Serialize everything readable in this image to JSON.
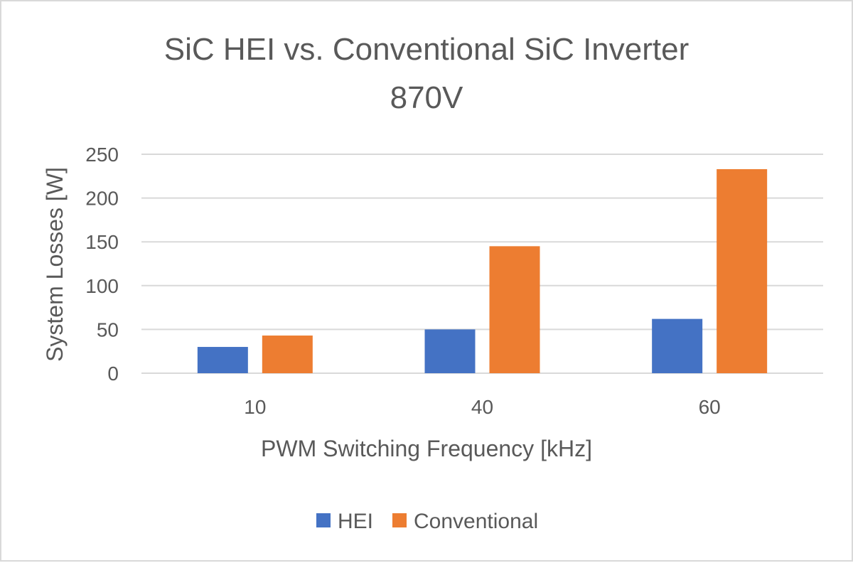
{
  "chart_data": {
    "type": "bar",
    "title": "SiC HEI vs. Conventional SiC Inverter",
    "subtitle": "870V",
    "xlabel": "PWM Switching Frequency [kHz]",
    "ylabel": "System Losses [W]",
    "categories": [
      "10",
      "40",
      "60"
    ],
    "series": [
      {
        "name": "HEI",
        "values": [
          30,
          50,
          62
        ],
        "color": "#4472C4"
      },
      {
        "name": "Conventional",
        "values": [
          43,
          145,
          233
        ],
        "color": "#ED7D31"
      }
    ],
    "ylim": [
      0,
      250
    ],
    "yticks": [
      0,
      50,
      100,
      150,
      200,
      250
    ],
    "grid": true,
    "legend_position": "bottom"
  }
}
